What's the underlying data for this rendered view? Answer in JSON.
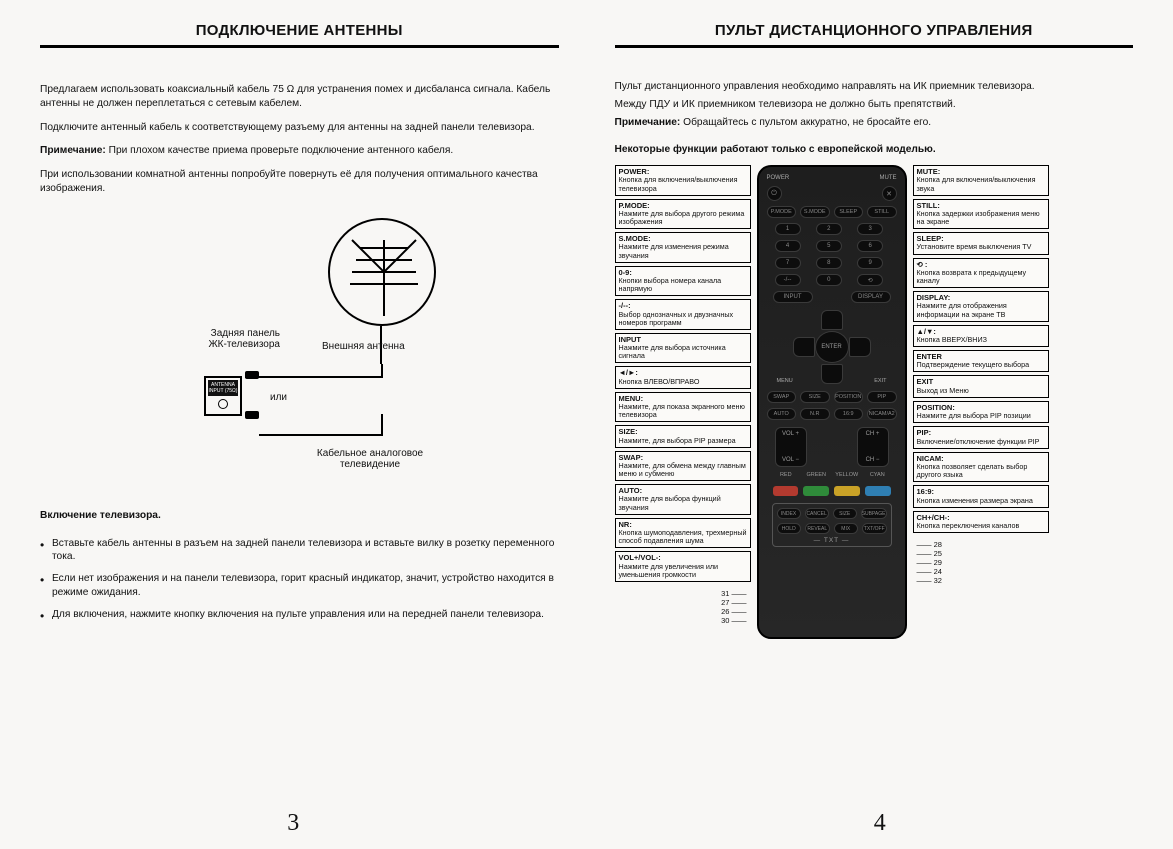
{
  "left": {
    "title": "ПОДКЛЮЧЕНИЕ АНТЕННЫ",
    "p1": "Предлагаем использовать коаксиальный кабель 75 Ω для устранения помех и дисбаланса сигнала. Кабель антенны не должен переплетаться с сетевым кабелем.",
    "p2": "Подключите антенный кабель к соответствующему разъему для антенны на задней панели телевизора.",
    "p3_b": "Примечание:",
    "p3": "При плохом качестве приема проверьте подключение антенного кабеля.",
    "p4": "При использовании комнатной антенны попробуйте повернуть её для получения оптимального качества изображения.",
    "diag": {
      "back_panel": "Задняя панель\nЖК-телевизора",
      "ext_antenna": "Внешняя антенна",
      "or": "или",
      "catv": "Кабельное аналоговое\nтелевидение",
      "port_text": "ANTENNA\nINPUT (75Ω)"
    },
    "sub": "Включение телевизора.",
    "b1": "Вставьте кабель антенны в разъем на задней панели телевизора и вставьте вилку в розетку переменного тока.",
    "b2": "Если нет изображения и на панели телевизора, горит красный индикатор, значит,  устройство находится в режиме ожидания.",
    "b3": "Для включения, нажмите кнопку включения на пульте управления или на передней панели телевизора.",
    "page": "3"
  },
  "right": {
    "title": "ПУЛЬТ ДИСТАНЦИОННОГО УПРАВЛЕНИЯ",
    "p1": "Пульт дистанционного управления необходимо направлять на ИК приемник телевизора.",
    "p2": "Между ПДУ и ИК приемником телевизора не должно быть препятствий.",
    "p3_b": "Примечание:",
    "p3": "Обращайтесь с пультом аккуратно, не бросайте его.",
    "sub": "Некоторые функции работают только с европейской моделью.",
    "page": "4",
    "left_callouts": [
      {
        "t": "POWER:",
        "d": "Кнопка для включения/выключения телевизора"
      },
      {
        "t": "P.MODE:",
        "d": "Нажмите для выбора другого режима изображения"
      },
      {
        "t": "S.MODE:",
        "d": "Нажмите для изменения режима звучания"
      },
      {
        "t": "0-9:",
        "d": "Кнопки выбора номера канала напрямую"
      },
      {
        "t": "-/--:",
        "d": "Выбор однозначных и двузначных номеров программ"
      },
      {
        "t": "INPUT",
        "d": "Нажмите для выбора источника сигнала"
      },
      {
        "t": "◄/►:",
        "d": "Кнопка ВЛЕВО/ВПРАВО"
      },
      {
        "t": "MENU:",
        "d": "Нажмите, для показа экранного меню телевизора"
      },
      {
        "t": "SIZE:",
        "d": "Нажмите, для выбора PIP размера"
      },
      {
        "t": "SWAP:",
        "d": "Нажмите, для обмена между главным меню и субменю"
      },
      {
        "t": "AUTO:",
        "d": "Нажмите для выбора функций звучания"
      },
      {
        "t": "NR:",
        "d": "Кнопка шумоподавления, трехмерный способ подавления шума"
      },
      {
        "t": "VOL+/VOL-:",
        "d": "Нажмите для увеличения или уменьшения громкости"
      }
    ],
    "left_nums": "31 ——\n27 ——\n26 ——\n30 ——",
    "right_callouts": [
      {
        "t": "MUTE:",
        "d": "Кнопка для включения/выключения звука"
      },
      {
        "t": "STILL:",
        "d": "Кнопка задержки изображения меню на экране"
      },
      {
        "t": "SLEEP:",
        "d": "Установите время выключения TV"
      },
      {
        "t": "⟲ :",
        "d": "Кнопка возврата к предыдущему каналу"
      },
      {
        "t": "DISPLAY:",
        "d": "Нажмите для отображения информации на экране ТВ"
      },
      {
        "t": "▲/▼:",
        "d": "Кнопка ВВЕРХ/ВНИЗ"
      },
      {
        "t": "ENTER",
        "d": "Подтверждение текущего выбора"
      },
      {
        "t": "EXIT",
        "d": "Выход из Меню"
      },
      {
        "t": "POSITION:",
        "d": "Нажмите для выбора PIP позиции"
      },
      {
        "t": "PIP:",
        "d": "Включение/отключение функции PIP"
      },
      {
        "t": "NICAM:",
        "d": "Кнопка позволяет сделать выбор другого языка"
      },
      {
        "t": "16:9:",
        "d": "Кнопка изменения размера экрана"
      },
      {
        "t": "CH+/CH-:",
        "d": "Кнопка переключения каналов"
      }
    ],
    "right_nums": "—— 28\n—— 25\n—— 29\n—— 24\n—— 32",
    "remote": {
      "top_l": "POWER",
      "top_r": "MUTE",
      "row2": [
        "P.MODE",
        "S.MODE",
        "SLEEP",
        "STILL"
      ],
      "digits": [
        "1",
        "2",
        "3",
        "4",
        "5",
        "6",
        "7",
        "8",
        "9",
        "-/--",
        "0",
        "⟲"
      ],
      "row_disp_l": "INPUT",
      "row_disp_r": "DISPLAY",
      "enter": "ENTER",
      "menu": "MENU",
      "exit": "EXIT",
      "row3": [
        "SWAP",
        "SIZE",
        "POSITION",
        "PIP"
      ],
      "row4": [
        "AUTO",
        "N.R",
        "16:9",
        "NICAM/A2"
      ],
      "vol_up": "VOL +",
      "vol_dn": "VOL −",
      "ch_up": "CH +",
      "ch_dn": "CH −",
      "color_labels": [
        "RED",
        "GREEN",
        "YELLOW",
        "CYAN"
      ],
      "colors": [
        "#b33a2f",
        "#2f8b3a",
        "#c9a227",
        "#2f7fb3"
      ],
      "ttx1": [
        "INDEX",
        "CANCEL",
        "SIZE",
        "SUBPAGE"
      ],
      "ttx2": [
        "HOLD",
        "REVEAL",
        "MIX",
        "TXT/OFF"
      ],
      "ttx_label": "— TXT —"
    }
  }
}
